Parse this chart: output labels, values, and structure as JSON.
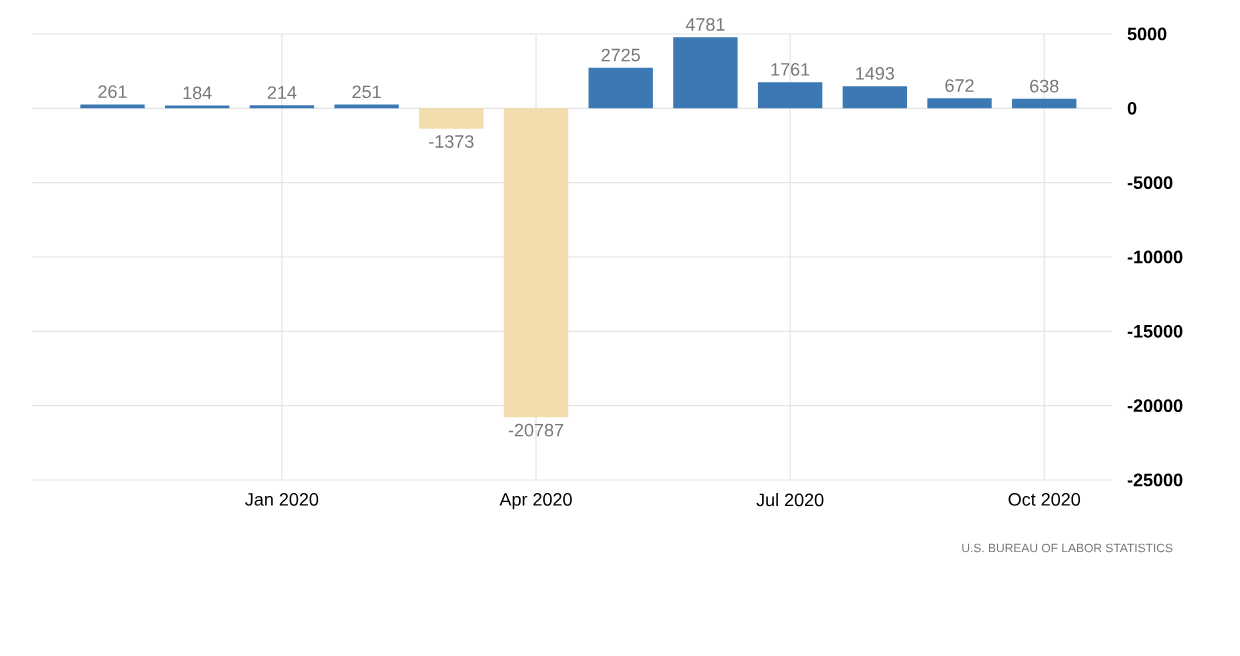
{
  "chart_data": {
    "type": "bar",
    "categories": [
      null,
      null,
      "Jan 2020",
      null,
      null,
      "Apr 2020",
      null,
      null,
      "Jul 2020",
      null,
      null,
      "Oct 2020"
    ],
    "values": [
      261,
      184,
      214,
      251,
      -1373,
      -20787,
      2725,
      4781,
      1761,
      1493,
      672,
      638
    ],
    "colors": [
      "#3b78b4",
      "#3b78b4",
      "#3b78b4",
      "#3b78b4",
      "#f3dcad",
      "#f3dcad",
      "#3b78b4",
      "#3b78b4",
      "#3b78b4",
      "#3b78b4",
      "#3b78b4",
      "#3b78b4"
    ],
    "ylim": [
      -25000,
      5000
    ],
    "yticks": [
      -25000,
      -20000,
      -15000,
      -10000,
      -5000,
      0,
      5000
    ],
    "grid": true,
    "data_labels": true,
    "annotations": [
      "U.S. BUREAU OF LABOR STATISTICS"
    ]
  }
}
